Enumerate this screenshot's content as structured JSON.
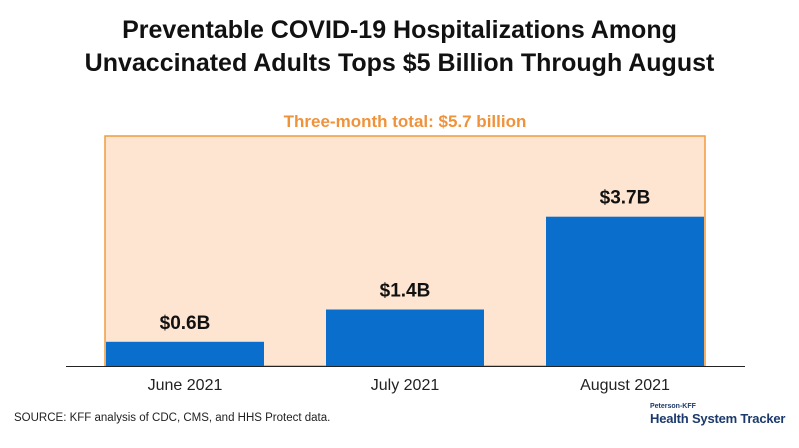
{
  "header": {
    "title_line1": "Preventable COVID-19 Hospitalizations Among",
    "title_line2": "Unvaccinated Adults Tops $5 Billion Through August"
  },
  "chart_data": {
    "type": "bar",
    "categories": [
      "June 2021",
      "July 2021",
      "August 2021"
    ],
    "values": [
      0.6,
      1.4,
      3.7
    ],
    "data_labels": [
      "$0.6B",
      "$1.4B",
      "$3.7B"
    ],
    "annotation": "Three-month total: $5.7 billion",
    "ylabel": "",
    "ylim": [
      0,
      5.7
    ],
    "grid": false,
    "colors": {
      "bar": "#0a6fcc",
      "total_box_fill": "#fde5d2",
      "total_box_border": "#f29b3f",
      "annotation_text": "#f0923a"
    }
  },
  "footer": {
    "source": "SOURCE: KFF analysis of CDC, CMS, and HHS Protect data.",
    "brand_small": "Peterson-KFF",
    "brand_big": "Health System Tracker"
  }
}
